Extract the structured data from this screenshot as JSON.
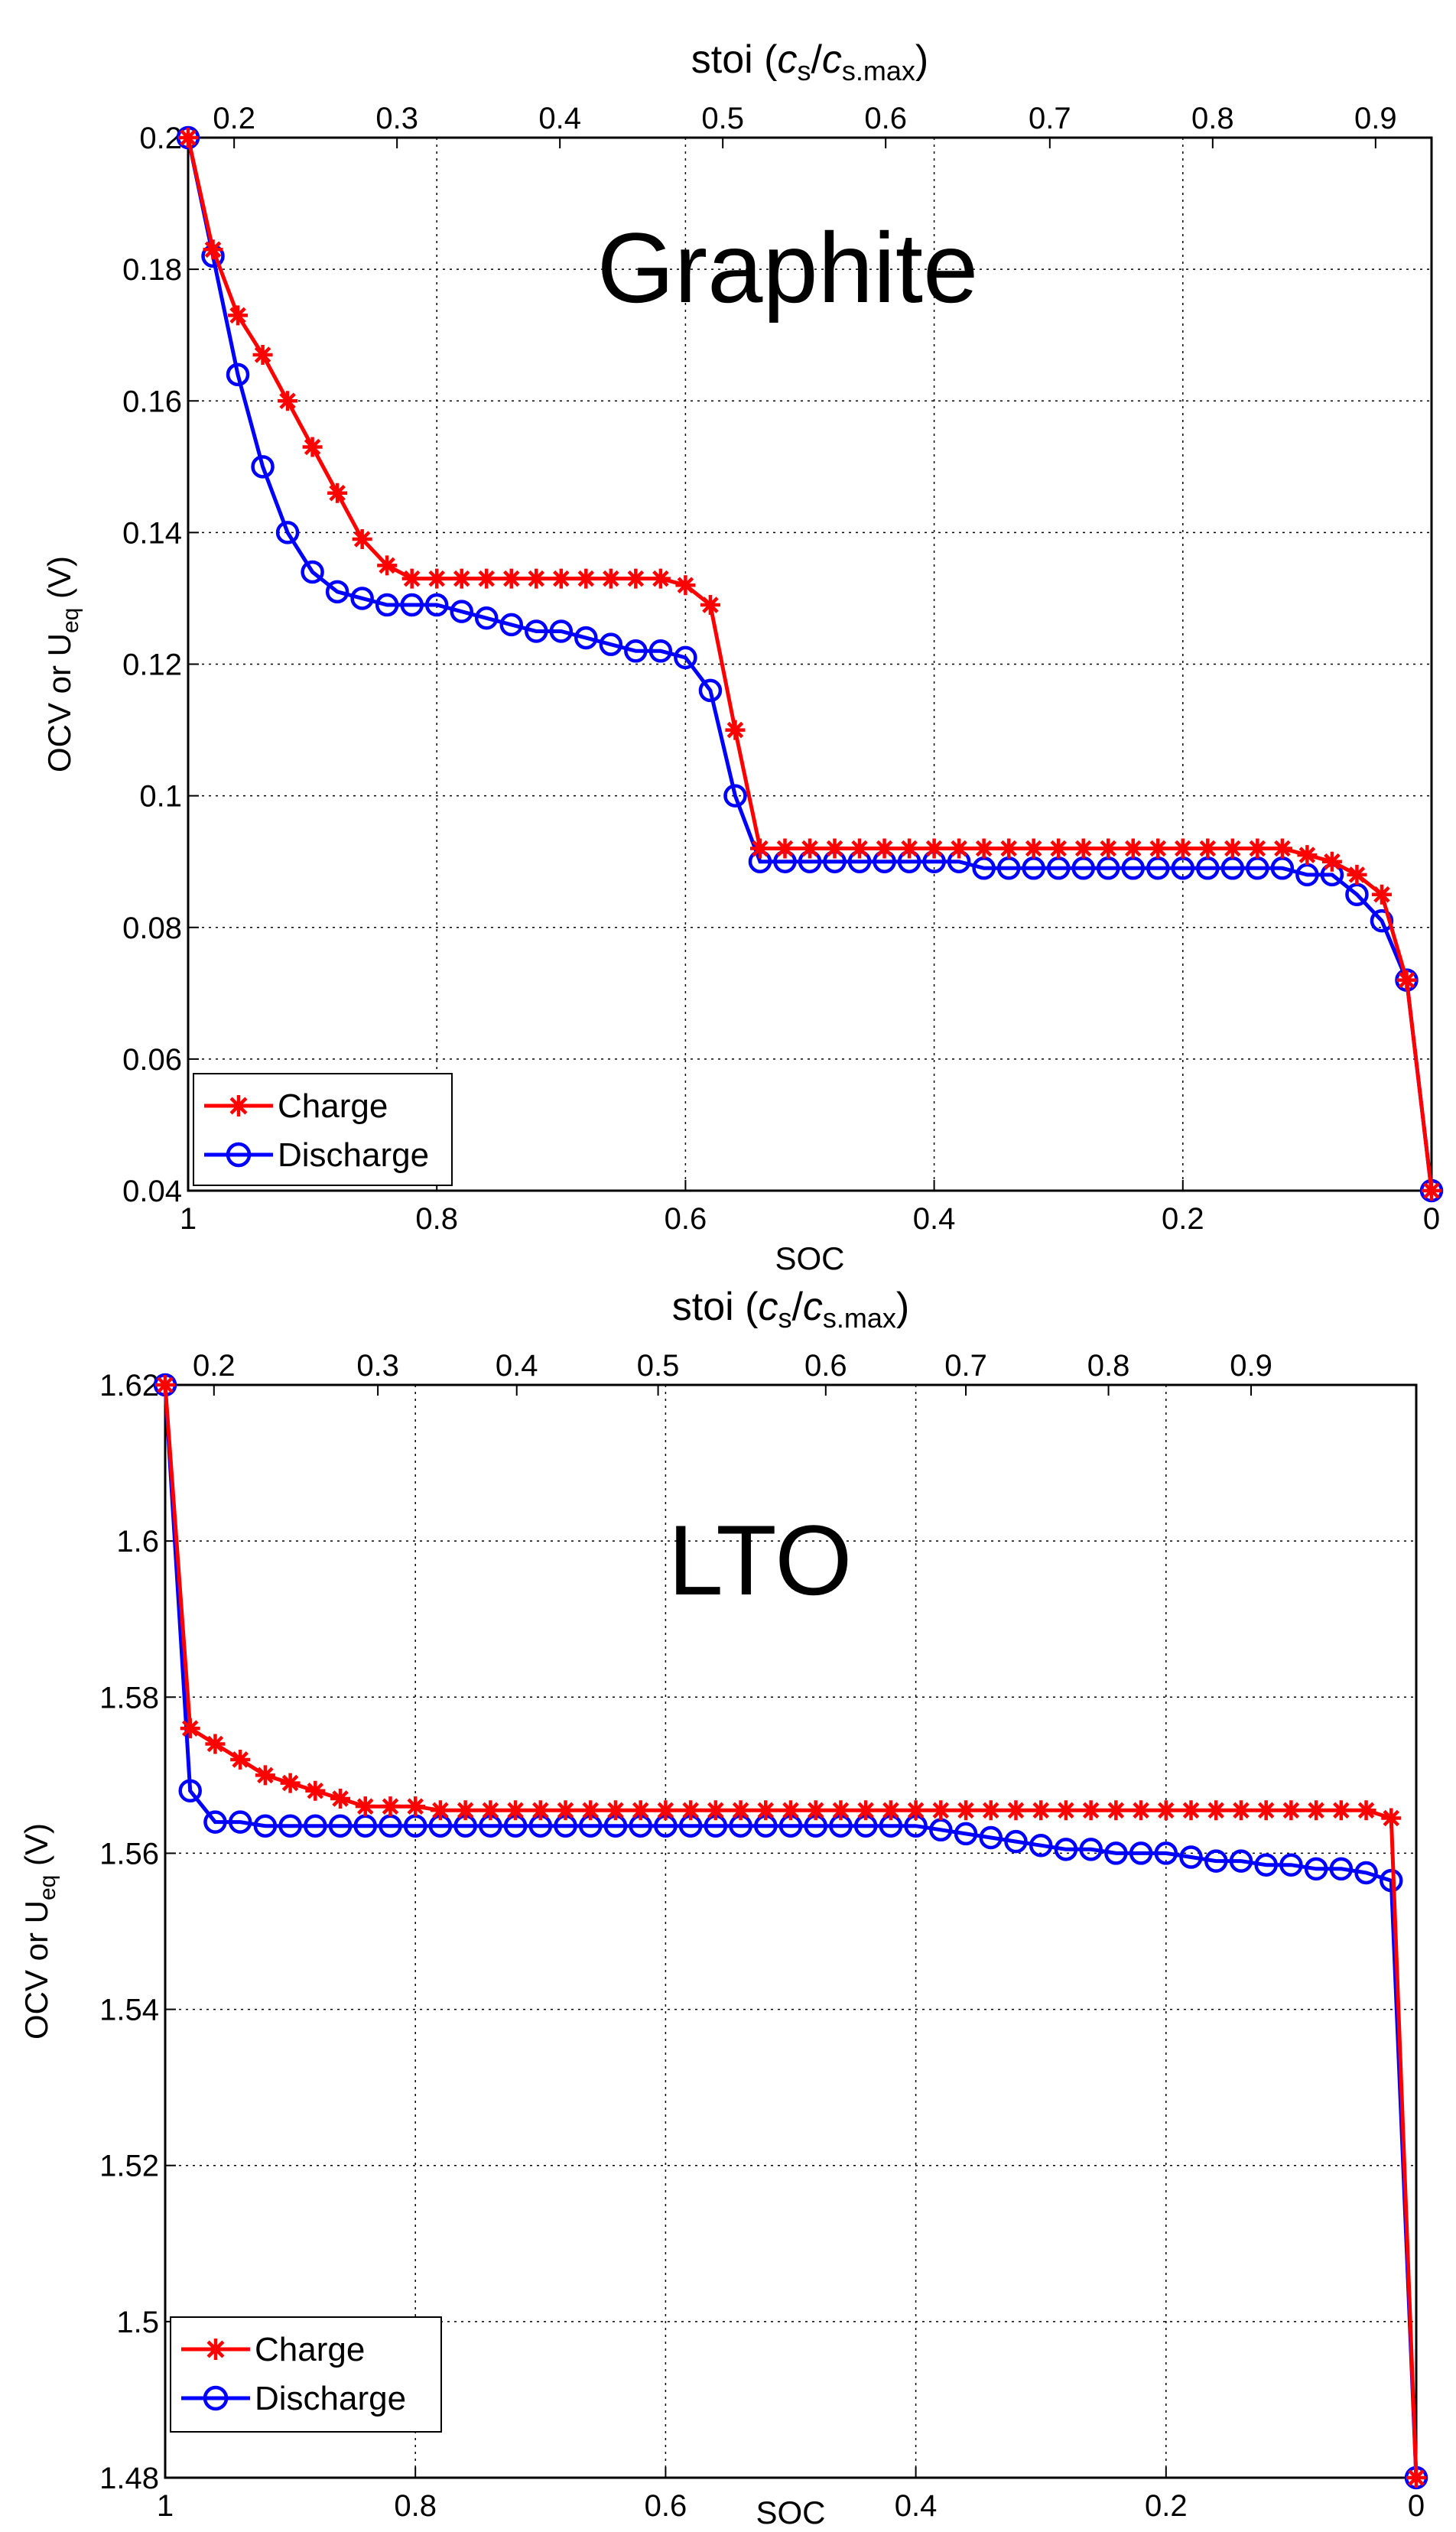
{
  "colors": {
    "charge": "#ff0000",
    "discharge": "#0000ff"
  },
  "chart_data": [
    {
      "type": "line",
      "title": "Graphite",
      "xlabel": "SOC",
      "ylabel_main": "OCV  or  U",
      "ylabel_sub": "eq",
      "ylabel_unit": " (V)",
      "top_axis_label": {
        "prefix": "stoi (",
        "c1": "c",
        "s1": "s",
        "slash": "/",
        "c2": "c",
        "s2": "s.max",
        "suffix": ")"
      },
      "xlim": [
        1,
        0
      ],
      "ylim": [
        0.04,
        0.2
      ],
      "x_ticks": [
        {
          "v": 1,
          "label": "1"
        },
        {
          "v": 0.8,
          "label": "0.8"
        },
        {
          "v": 0.6,
          "label": "0.6"
        },
        {
          "v": 0.4,
          "label": "0.4"
        },
        {
          "v": 0.2,
          "label": "0.2"
        },
        {
          "v": 0,
          "label": "0"
        }
      ],
      "y_ticks": [
        {
          "v": 0.2,
          "label": "0.2"
        },
        {
          "v": 0.18,
          "label": "0.18"
        },
        {
          "v": 0.16,
          "label": "0.16"
        },
        {
          "v": 0.14,
          "label": "0.14"
        },
        {
          "v": 0.12,
          "label": "0.12"
        },
        {
          "v": 0.1,
          "label": "0.1"
        },
        {
          "v": 0.08,
          "label": "0.08"
        },
        {
          "v": 0.06,
          "label": "0.06"
        },
        {
          "v": 0.04,
          "label": "0.04"
        }
      ],
      "top_ticks": [
        {
          "v": 0.963,
          "label": "0.2"
        },
        {
          "v": 0.832,
          "label": "0.3"
        },
        {
          "v": 0.701,
          "label": "0.4"
        },
        {
          "v": 0.57,
          "label": "0.5"
        },
        {
          "v": 0.439,
          "label": "0.6"
        },
        {
          "v": 0.307,
          "label": "0.7"
        },
        {
          "v": 0.176,
          "label": "0.8"
        },
        {
          "v": 0.045,
          "label": "0.9"
        }
      ],
      "legend": [
        "Charge",
        "Discharge"
      ],
      "series": [
        {
          "name": "Charge",
          "marker": "star",
          "x": [
            1.0,
            0.98,
            0.96,
            0.94,
            0.92,
            0.9,
            0.88,
            0.86,
            0.84,
            0.82,
            0.8,
            0.78,
            0.76,
            0.74,
            0.72,
            0.7,
            0.68,
            0.66,
            0.64,
            0.62,
            0.6,
            0.58,
            0.56,
            0.54,
            0.52,
            0.5,
            0.48,
            0.46,
            0.44,
            0.42,
            0.4,
            0.38,
            0.36,
            0.34,
            0.32,
            0.3,
            0.28,
            0.26,
            0.24,
            0.22,
            0.2,
            0.18,
            0.16,
            0.14,
            0.12,
            0.1,
            0.08,
            0.06,
            0.04,
            0.02,
            0.0
          ],
          "y": [
            0.2,
            0.183,
            0.173,
            0.167,
            0.16,
            0.153,
            0.146,
            0.139,
            0.135,
            0.133,
            0.133,
            0.133,
            0.133,
            0.133,
            0.133,
            0.133,
            0.133,
            0.133,
            0.133,
            0.133,
            0.132,
            0.129,
            0.11,
            0.092,
            0.092,
            0.092,
            0.092,
            0.092,
            0.092,
            0.092,
            0.092,
            0.092,
            0.092,
            0.092,
            0.092,
            0.092,
            0.092,
            0.092,
            0.092,
            0.092,
            0.092,
            0.092,
            0.092,
            0.092,
            0.092,
            0.091,
            0.09,
            0.088,
            0.085,
            0.072,
            0.04
          ]
        },
        {
          "name": "Discharge",
          "marker": "circle",
          "x": [
            1.0,
            0.98,
            0.96,
            0.94,
            0.92,
            0.9,
            0.88,
            0.86,
            0.84,
            0.82,
            0.8,
            0.78,
            0.76,
            0.74,
            0.72,
            0.7,
            0.68,
            0.66,
            0.64,
            0.62,
            0.6,
            0.58,
            0.56,
            0.54,
            0.52,
            0.5,
            0.48,
            0.46,
            0.44,
            0.42,
            0.4,
            0.38,
            0.36,
            0.34,
            0.32,
            0.3,
            0.28,
            0.26,
            0.24,
            0.22,
            0.2,
            0.18,
            0.16,
            0.14,
            0.12,
            0.1,
            0.08,
            0.06,
            0.04,
            0.02,
            0.0
          ],
          "y": [
            0.2,
            0.182,
            0.164,
            0.15,
            0.14,
            0.134,
            0.131,
            0.13,
            0.129,
            0.129,
            0.129,
            0.128,
            0.127,
            0.126,
            0.125,
            0.125,
            0.124,
            0.123,
            0.122,
            0.122,
            0.121,
            0.116,
            0.1,
            0.09,
            0.09,
            0.09,
            0.09,
            0.09,
            0.09,
            0.09,
            0.09,
            0.09,
            0.089,
            0.089,
            0.089,
            0.089,
            0.089,
            0.089,
            0.089,
            0.089,
            0.089,
            0.089,
            0.089,
            0.089,
            0.089,
            0.088,
            0.088,
            0.085,
            0.081,
            0.072,
            0.04
          ]
        }
      ]
    },
    {
      "type": "line",
      "title": "LTO",
      "xlabel": "SOC",
      "ylabel_main": "OCV  or  U",
      "ylabel_sub": "eq",
      "ylabel_unit": " (V)",
      "top_axis_label": {
        "prefix": "stoi (",
        "c1": "c",
        "s1": "s",
        "slash": "/",
        "c2": "c",
        "s2": "s.max",
        "suffix": ")"
      },
      "xlim": [
        1,
        0
      ],
      "ylim": [
        1.48,
        1.62
      ],
      "x_ticks": [
        {
          "v": 1,
          "label": "1"
        },
        {
          "v": 0.8,
          "label": "0.8"
        },
        {
          "v": 0.6,
          "label": "0.6"
        },
        {
          "v": 0.4,
          "label": "0.4"
        },
        {
          "v": 0.2,
          "label": "0.2"
        },
        {
          "v": 0,
          "label": "0"
        }
      ],
      "y_ticks": [
        {
          "v": 1.62,
          "label": "1.62"
        },
        {
          "v": 1.6,
          "label": "1.6"
        },
        {
          "v": 1.58,
          "label": "1.58"
        },
        {
          "v": 1.56,
          "label": "1.56"
        },
        {
          "v": 1.54,
          "label": "1.54"
        },
        {
          "v": 1.52,
          "label": "1.52"
        },
        {
          "v": 1.5,
          "label": "1.5"
        },
        {
          "v": 1.48,
          "label": "1.48"
        }
      ],
      "top_ticks": [
        {
          "v": 0.961,
          "label": "0.2"
        },
        {
          "v": 0.83,
          "label": "0.3"
        },
        {
          "v": 0.719,
          "label": "0.4"
        },
        {
          "v": 0.606,
          "label": "0.5"
        },
        {
          "v": 0.472,
          "label": "0.6"
        },
        {
          "v": 0.36,
          "label": "0.7"
        },
        {
          "v": 0.246,
          "label": "0.8"
        },
        {
          "v": 0.132,
          "label": "0.9"
        }
      ],
      "legend": [
        "Charge",
        "Discharge"
      ],
      "series": [
        {
          "name": "Charge",
          "marker": "star",
          "x": [
            1.0,
            0.98,
            0.96,
            0.94,
            0.92,
            0.9,
            0.88,
            0.86,
            0.84,
            0.82,
            0.8,
            0.78,
            0.76,
            0.74,
            0.72,
            0.7,
            0.68,
            0.66,
            0.64,
            0.62,
            0.6,
            0.58,
            0.56,
            0.54,
            0.52,
            0.5,
            0.48,
            0.46,
            0.44,
            0.42,
            0.4,
            0.38,
            0.36,
            0.34,
            0.32,
            0.3,
            0.28,
            0.26,
            0.24,
            0.22,
            0.2,
            0.18,
            0.16,
            0.14,
            0.12,
            0.1,
            0.08,
            0.06,
            0.04,
            0.02,
            0.0
          ],
          "y": [
            1.62,
            1.576,
            1.574,
            1.572,
            1.57,
            1.569,
            1.568,
            1.567,
            1.566,
            1.566,
            1.566,
            1.5655,
            1.5655,
            1.5655,
            1.5655,
            1.5655,
            1.5655,
            1.5655,
            1.5655,
            1.5655,
            1.5655,
            1.5655,
            1.5655,
            1.5655,
            1.5655,
            1.5655,
            1.5655,
            1.5655,
            1.5655,
            1.5655,
            1.5655,
            1.5655,
            1.5655,
            1.5655,
            1.5655,
            1.5655,
            1.5655,
            1.5655,
            1.5655,
            1.5655,
            1.5655,
            1.5655,
            1.5655,
            1.5655,
            1.5655,
            1.5655,
            1.5655,
            1.5655,
            1.5655,
            1.5645,
            1.48
          ]
        },
        {
          "name": "Discharge",
          "marker": "circle",
          "x": [
            1.0,
            0.98,
            0.96,
            0.94,
            0.92,
            0.9,
            0.88,
            0.86,
            0.84,
            0.82,
            0.8,
            0.78,
            0.76,
            0.74,
            0.72,
            0.7,
            0.68,
            0.66,
            0.64,
            0.62,
            0.6,
            0.58,
            0.56,
            0.54,
            0.52,
            0.5,
            0.48,
            0.46,
            0.44,
            0.42,
            0.4,
            0.38,
            0.36,
            0.34,
            0.32,
            0.3,
            0.28,
            0.26,
            0.24,
            0.22,
            0.2,
            0.18,
            0.16,
            0.14,
            0.12,
            0.1,
            0.08,
            0.06,
            0.04,
            0.02,
            0.0
          ],
          "y": [
            1.62,
            1.568,
            1.564,
            1.564,
            1.5635,
            1.5635,
            1.5635,
            1.5635,
            1.5635,
            1.5635,
            1.5635,
            1.5635,
            1.5635,
            1.5635,
            1.5635,
            1.5635,
            1.5635,
            1.5635,
            1.5635,
            1.5635,
            1.5635,
            1.5635,
            1.5635,
            1.5635,
            1.5635,
            1.5635,
            1.5635,
            1.5635,
            1.5635,
            1.5635,
            1.5635,
            1.563,
            1.5625,
            1.562,
            1.5615,
            1.561,
            1.5605,
            1.5605,
            1.56,
            1.56,
            1.56,
            1.5595,
            1.559,
            1.559,
            1.5585,
            1.5585,
            1.558,
            1.558,
            1.5575,
            1.5565,
            1.48
          ]
        }
      ]
    }
  ]
}
